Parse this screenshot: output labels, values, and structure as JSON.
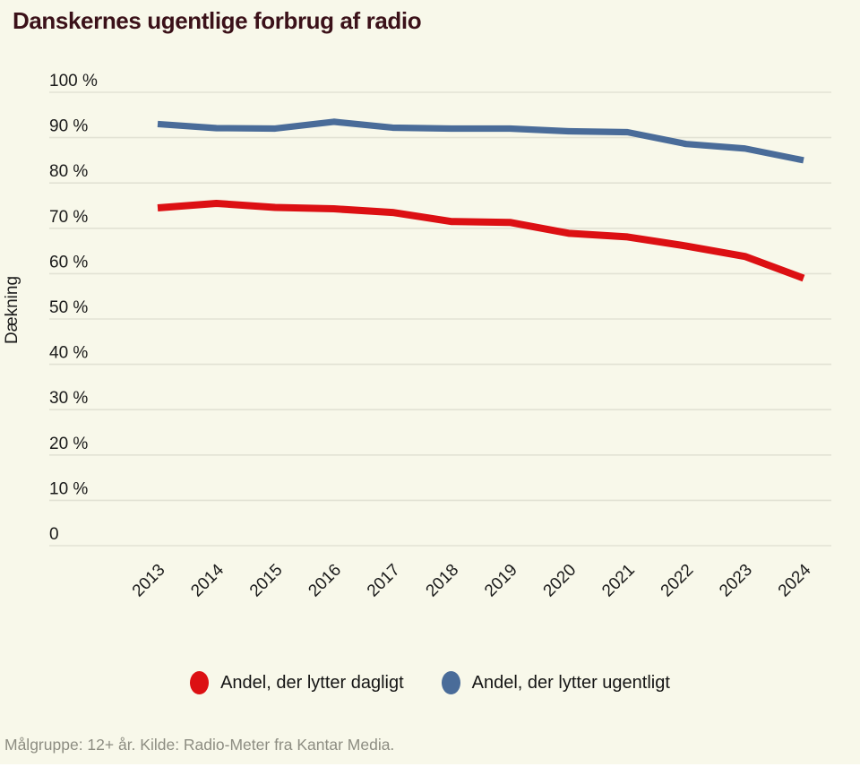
{
  "page": {
    "title": "Danskernes ugentlige forbrug af radio",
    "footer": "Målgruppe: 12+ år. Kilde: Radio-Meter fra Kantar Media."
  },
  "colors": {
    "background": "#f8f8ea",
    "title_text": "#3b1119",
    "grid_line": "#e2e2d4",
    "axis_text": "#1b1b1b",
    "footer_text": "#8d8d82",
    "red": "#dc1013",
    "blue": "#4a6c99"
  },
  "chart_data": {
    "type": "line",
    "title": "Danskernes ugentlige forbrug af radio",
    "xlabel": "",
    "ylabel": "Dækning",
    "x": [
      2013,
      2014,
      2015,
      2016,
      2017,
      2018,
      2019,
      2020,
      2021,
      2022,
      2023,
      2024
    ],
    "ylim": [
      0,
      100
    ],
    "grid": true,
    "legend_position": "bottom",
    "y_tick_labels": [
      "100 %",
      "90 %",
      "80 %",
      "70 %",
      "60 %",
      "50 %",
      "40 %",
      "30 %",
      "20 %",
      "10 %",
      "0"
    ],
    "series": [
      {
        "name": "Andel, der lytter dagligt",
        "color": "#dc1013",
        "values": [
          74.5,
          75.5,
          74.6,
          74.3,
          73.5,
          71.5,
          71.3,
          68.9,
          68.1,
          66.1,
          63.8,
          59
        ]
      },
      {
        "name": "Andel, der lytter ugentligt",
        "color": "#4a6c99",
        "values": [
          93,
          92.1,
          92,
          93.5,
          92.2,
          92,
          92,
          91.4,
          91.2,
          88.6,
          87.6,
          85
        ]
      }
    ]
  },
  "legend": {
    "items": [
      {
        "label": "Andel, der lytter dagligt",
        "color": "#dc1013"
      },
      {
        "label": "Andel, der lytter ugentligt",
        "color": "#4a6c99"
      }
    ]
  }
}
